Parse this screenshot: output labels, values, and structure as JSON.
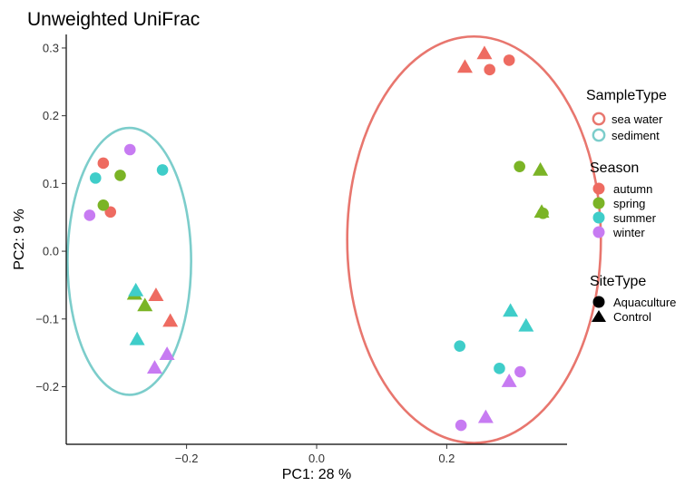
{
  "chart_data": {
    "type": "scatter",
    "title": "Unweighted UniFrac",
    "xlabel": "PC1:  28 %",
    "ylabel": "PC2:  9 %",
    "xlim": [
      -0.385,
      0.385
    ],
    "ylim": [
      -0.285,
      0.32
    ],
    "x_ticks": [
      -0.2,
      0.0,
      0.2
    ],
    "x_tick_labels": [
      "−0.2",
      "0.0",
      "0.2"
    ],
    "y_ticks": [
      0.3,
      0.2,
      0.1,
      0.0,
      -0.1,
      -0.2
    ],
    "y_tick_labels": [
      "0.3",
      "0.2",
      "0.1",
      "0.0",
      "−0.1",
      "−0.2"
    ],
    "grid": false,
    "legend_position": "right",
    "legends": {
      "sample_type": {
        "title": "SampleType",
        "entries": [
          {
            "label": "sea water",
            "color": "#E8766E"
          },
          {
            "label": "sediment",
            "color": "#7CCDCB"
          }
        ]
      },
      "season": {
        "title": "Season",
        "entries": [
          {
            "label": "autumn",
            "color": "#EE6B61"
          },
          {
            "label": "spring",
            "color": "#7BB426"
          },
          {
            "label": "summer",
            "color": "#3FCDC9"
          },
          {
            "label": "winter",
            "color": "#C77BF2"
          }
        ]
      },
      "site_type": {
        "title": "SiteType",
        "entries": [
          {
            "label": "Aquaculture",
            "shape": "circle"
          },
          {
            "label": "Control",
            "shape": "triangle"
          }
        ]
      }
    },
    "ellipses": [
      {
        "sample_type": "sediment",
        "cx": -0.288,
        "cy": -0.015,
        "rx": 0.095,
        "ry": 0.197
      },
      {
        "sample_type": "sea water",
        "cx": 0.242,
        "cy": 0.017,
        "rx": 0.195,
        "ry": 0.3
      }
    ],
    "points": [
      {
        "x": -0.328,
        "y": 0.13,
        "season": "autumn",
        "site": "Aquaculture"
      },
      {
        "x": -0.317,
        "y": 0.058,
        "season": "autumn",
        "site": "Aquaculture"
      },
      {
        "x": -0.302,
        "y": 0.112,
        "season": "spring",
        "site": "Aquaculture"
      },
      {
        "x": -0.328,
        "y": 0.068,
        "season": "spring",
        "site": "Aquaculture"
      },
      {
        "x": -0.34,
        "y": 0.108,
        "season": "summer",
        "site": "Aquaculture"
      },
      {
        "x": -0.237,
        "y": 0.12,
        "season": "summer",
        "site": "Aquaculture"
      },
      {
        "x": -0.287,
        "y": 0.15,
        "season": "winter",
        "site": "Aquaculture"
      },
      {
        "x": -0.349,
        "y": 0.053,
        "season": "winter",
        "site": "Aquaculture"
      },
      {
        "x": -0.247,
        "y": -0.065,
        "season": "autumn",
        "site": "Control"
      },
      {
        "x": -0.225,
        "y": -0.103,
        "season": "autumn",
        "site": "Control"
      },
      {
        "x": -0.28,
        "y": -0.063,
        "season": "spring",
        "site": "Control"
      },
      {
        "x": -0.264,
        "y": -0.08,
        "season": "spring",
        "site": "Control"
      },
      {
        "x": -0.278,
        "y": -0.058,
        "season": "summer",
        "site": "Control"
      },
      {
        "x": -0.276,
        "y": -0.13,
        "season": "summer",
        "site": "Control"
      },
      {
        "x": -0.23,
        "y": -0.152,
        "season": "winter",
        "site": "Control"
      },
      {
        "x": -0.249,
        "y": -0.172,
        "season": "winter",
        "site": "Control"
      },
      {
        "x": 0.266,
        "y": 0.268,
        "season": "autumn",
        "site": "Aquaculture"
      },
      {
        "x": 0.296,
        "y": 0.282,
        "season": "autumn",
        "site": "Aquaculture"
      },
      {
        "x": 0.258,
        "y": 0.292,
        "season": "autumn",
        "site": "Control"
      },
      {
        "x": 0.228,
        "y": 0.272,
        "season": "autumn",
        "site": "Control"
      },
      {
        "x": 0.312,
        "y": 0.125,
        "season": "spring",
        "site": "Aquaculture"
      },
      {
        "x": 0.348,
        "y": 0.056,
        "season": "spring",
        "site": "Aquaculture"
      },
      {
        "x": 0.344,
        "y": 0.12,
        "season": "spring",
        "site": "Control"
      },
      {
        "x": 0.346,
        "y": 0.058,
        "season": "spring",
        "site": "Control"
      },
      {
        "x": 0.22,
        "y": -0.14,
        "season": "summer",
        "site": "Aquaculture"
      },
      {
        "x": 0.281,
        "y": -0.173,
        "season": "summer",
        "site": "Aquaculture"
      },
      {
        "x": 0.298,
        "y": -0.088,
        "season": "summer",
        "site": "Control"
      },
      {
        "x": 0.322,
        "y": -0.11,
        "season": "summer",
        "site": "Control"
      },
      {
        "x": 0.313,
        "y": -0.178,
        "season": "winter",
        "site": "Aquaculture"
      },
      {
        "x": 0.222,
        "y": -0.257,
        "season": "winter",
        "site": "Aquaculture"
      },
      {
        "x": 0.296,
        "y": -0.192,
        "season": "winter",
        "site": "Control"
      },
      {
        "x": 0.26,
        "y": -0.245,
        "season": "winter",
        "site": "Control"
      }
    ]
  }
}
